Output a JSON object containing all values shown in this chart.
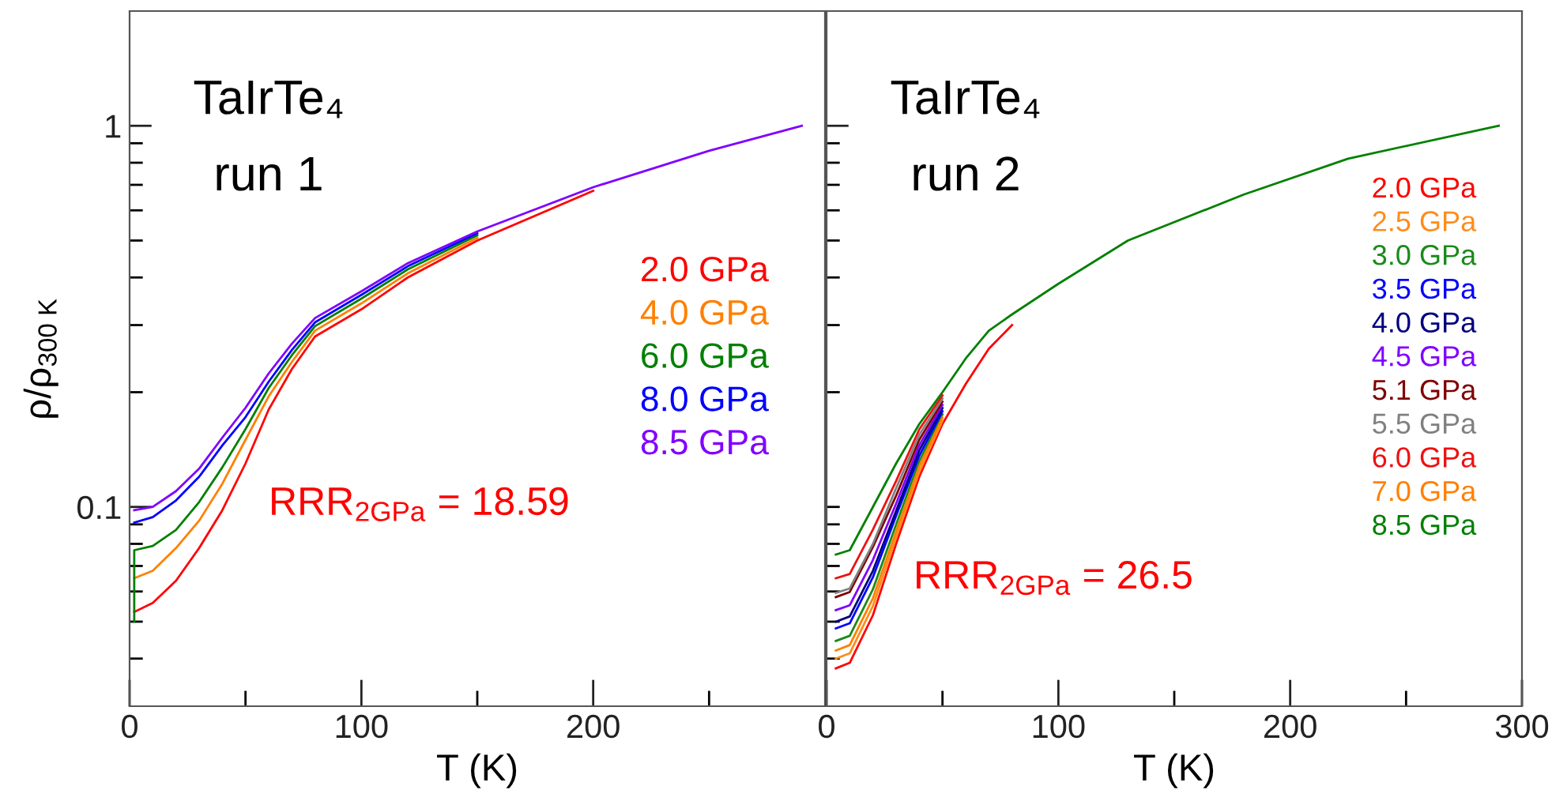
{
  "chart_data": [
    {
      "type": "line",
      "title": "TaIrTe₄",
      "subtitle": "run 1",
      "xlabel": "T (K)",
      "ylabel": "ρ/ρ$_{300 K}$",
      "log": "y",
      "xlim": [
        0,
        300
      ],
      "ylim": [
        0.03,
        2
      ],
      "xticks": [
        0,
        {
          "value": 50,
          "label": null
        },
        100,
        {
          "value": 150,
          "label": null
        },
        200,
        {
          "value": 250,
          "label": null
        }
      ],
      "yticks": [
        {
          "value": 0.04,
          "label": null
        },
        {
          "value": 0.05,
          "label": null
        },
        {
          "value": 0.06,
          "label": null
        },
        {
          "value": 0.07,
          "label": null
        },
        {
          "value": 0.08,
          "label": null
        },
        {
          "value": 0.09,
          "label": null
        },
        {
          "value": 0.1,
          "label": "0.1"
        },
        {
          "value": 0.2,
          "label": null
        },
        {
          "value": 0.3,
          "label": null
        },
        {
          "value": 0.4,
          "label": null
        },
        {
          "value": 0.5,
          "label": null
        },
        {
          "value": 0.6,
          "label": null
        },
        {
          "value": 0.7,
          "label": null
        },
        {
          "value": 0.8,
          "label": null
        },
        {
          "value": 0.9,
          "label": null
        },
        1
      ],
      "grid": false,
      "legend": "right",
      "marker": "none",
      "line_style": "solid",
      "annotations": [
        "RRR$_{2GPa}$ = 18.59"
      ],
      "series": [
        {
          "name": "2.0 GPa",
          "color": "#ff0000",
          "x": [
            2,
            10,
            20,
            30,
            40,
            50,
            60,
            70,
            80,
            100,
            120,
            150,
            200
          ],
          "values": [
            0.053,
            0.056,
            0.064,
            0.078,
            0.098,
            0.13,
            0.18,
            0.23,
            0.28,
            0.33,
            0.4,
            0.5,
            0.675
          ]
        },
        {
          "name": "4.0 GPa",
          "color": "#ff8000",
          "x": [
            2,
            10,
            20,
            30,
            40,
            50,
            60,
            70,
            80,
            100,
            120,
            150
          ],
          "values": [
            0.065,
            0.068,
            0.078,
            0.092,
            0.115,
            0.15,
            0.195,
            0.24,
            0.29,
            0.342,
            0.41,
            0.508
          ]
        },
        {
          "name": "6.0 GPa",
          "color": "#008000",
          "x": [
            2,
            2,
            10,
            20,
            30,
            40,
            50,
            60,
            70,
            80,
            100,
            120,
            150
          ],
          "values": [
            0.05,
            0.077,
            0.079,
            0.087,
            0.103,
            0.127,
            0.16,
            0.205,
            0.25,
            0.298,
            0.352,
            0.42,
            0.516
          ]
        },
        {
          "name": "8.0 GPa",
          "color": "#0000ff",
          "x": [
            2,
            10,
            20,
            30,
            40,
            50,
            60,
            70,
            80,
            100,
            120,
            150
          ],
          "values": [
            0.091,
            0.094,
            0.104,
            0.12,
            0.145,
            0.172,
            0.213,
            0.258,
            0.305,
            0.36,
            0.428,
            0.522
          ]
        },
        {
          "name": "8.5 GPa",
          "color": "#8000ff",
          "x": [
            2,
            10,
            20,
            30,
            40,
            50,
            60,
            70,
            80,
            100,
            120,
            150,
            200,
            250,
            290
          ],
          "values": [
            0.098,
            0.1,
            0.11,
            0.126,
            0.152,
            0.182,
            0.224,
            0.268,
            0.313,
            0.368,
            0.436,
            0.528,
            0.69,
            0.86,
            1
          ]
        }
      ]
    },
    {
      "type": "line",
      "title": "TaIrTe₄",
      "subtitle": "run 2",
      "xlabel": "T (K)",
      "log": "y",
      "xlim": [
        0,
        300
      ],
      "ylim": [
        0.03,
        2
      ],
      "tick_labels": "x",
      "xticks": [
        0,
        {
          "value": 50,
          "label": null
        },
        100,
        {
          "value": 150,
          "label": null
        },
        200,
        {
          "value": 250,
          "label": null
        },
        300
      ],
      "yticks": [
        {
          "value": 0.04,
          "label": null
        },
        {
          "value": 0.05,
          "label": null
        },
        {
          "value": 0.06,
          "label": null
        },
        {
          "value": 0.07,
          "label": null
        },
        {
          "value": 0.08,
          "label": null
        },
        {
          "value": 0.09,
          "label": null
        },
        {
          "value": 0.1,
          "label": null
        },
        {
          "value": 0.2,
          "label": null
        },
        {
          "value": 0.3,
          "label": null
        },
        {
          "value": 0.4,
          "label": null
        },
        {
          "value": 0.5,
          "label": null
        },
        {
          "value": 0.6,
          "label": null
        },
        {
          "value": 0.7,
          "label": null
        },
        {
          "value": 0.8,
          "label": null
        },
        {
          "value": 0.9,
          "label": null
        },
        1
      ],
      "grid": false,
      "legend": "right",
      "marker": "none",
      "line_style": "solid",
      "annotations": [
        "RRR$_{2GPa}$ = 26.5"
      ],
      "series": [
        {
          "name": "2.0 GPa",
          "color": "#ff0000",
          "x": [
            4,
            10,
            20,
            30,
            40,
            50,
            60,
            70,
            80
          ],
          "values": [
            0.0377,
            0.039,
            0.052,
            0.08,
            0.12,
            0.165,
            0.21,
            0.26,
            0.3
          ]
        },
        {
          "name": "2.5 GPa",
          "color": "#ff8c1a",
          "x": [
            4,
            10,
            20,
            30,
            40,
            50
          ],
          "values": [
            0.04,
            0.0413,
            0.055,
            0.0834,
            0.1239,
            0.1682
          ]
        },
        {
          "name": "3.0 GPa",
          "color": "#1a8a1a",
          "x": [
            4,
            10,
            20,
            30,
            40,
            50
          ],
          "values": [
            0.0445,
            0.0459,
            0.0608,
            0.0899,
            0.132,
            0.1748
          ]
        },
        {
          "name": "3.5 GPa",
          "color": "#0000ff",
          "x": [
            4,
            10,
            20,
            30,
            40,
            50
          ],
          "values": [
            0.048,
            0.0495,
            0.0654,
            0.0948,
            0.1363,
            0.1782
          ]
        },
        {
          "name": "4.0 GPa",
          "color": "#000080",
          "x": [
            4,
            10,
            20,
            30,
            40,
            50
          ],
          "values": [
            0.05,
            0.0516,
            0.068,
            0.0976,
            0.1408,
            0.1817
          ]
        },
        {
          "name": "4.5 GPa",
          "color": "#8000ff",
          "x": [
            4,
            10,
            20,
            30,
            40,
            50
          ],
          "values": [
            0.0536,
            0.0552,
            0.0726,
            0.102,
            0.1452,
            0.1851
          ]
        },
        {
          "name": "5.1 GPa",
          "color": "#800000",
          "x": [
            4,
            10,
            20,
            30,
            40,
            50
          ],
          "values": [
            0.058,
            0.0598,
            0.0785,
            0.107,
            0.15,
            0.1888
          ]
        },
        {
          "name": "5.5 GPa",
          "color": "#808080",
          "x": [
            4,
            10,
            20,
            30,
            40,
            50
          ],
          "values": [
            0.0595,
            0.0611,
            0.08,
            0.112,
            0.1548,
            0.1924
          ]
        },
        {
          "name": "6.0 GPa",
          "color": "#ee1111",
          "x": [
            4,
            10,
            20,
            30,
            40,
            50
          ],
          "values": [
            0.065,
            0.0667,
            0.0872,
            0.117,
            0.1598,
            0.1962
          ]
        },
        {
          "name": "7.0 GPa",
          "color": "#ff8000",
          "x": [
            4,
            10,
            20,
            30,
            40,
            50
          ],
          "values": [
            0.042,
            0.0434,
            0.0576,
            0.0863,
            0.1279,
            0.1715
          ]
        },
        {
          "name": "8.5 GPa",
          "color": "#008000",
          "x": [
            4,
            10,
            20,
            30,
            40,
            50,
            60,
            70,
            80,
            100,
            130,
            180,
            225,
            290
          ],
          "values": [
            0.075,
            0.077,
            0.1,
            0.13,
            0.165,
            0.2,
            0.245,
            0.29,
            0.32,
            0.385,
            0.5,
            0.66,
            0.82,
            1
          ]
        }
      ]
    }
  ]
}
